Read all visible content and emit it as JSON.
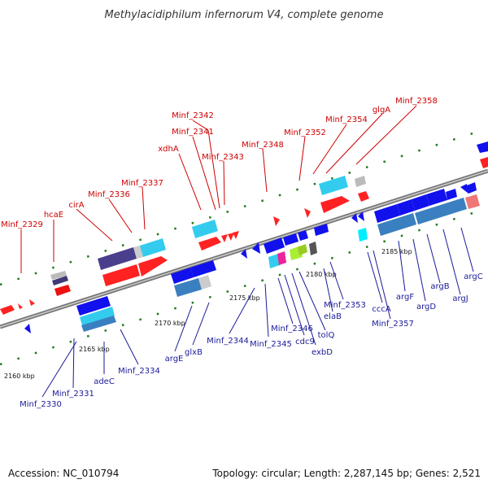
{
  "title": "Methylacidiphilum infernorum V4, complete genome",
  "footer": {
    "accession": "Accession: NC_010794",
    "topology": "Topology: circular; Length: 2,287,145 bp; Genes: 2,521"
  },
  "colors": {
    "forward_gene": "#ff0000",
    "reverse_gene": "#1010ee",
    "cds_blue": "#3a80c0",
    "cyan": "#33ccee",
    "purple": "#4a3f8c",
    "track_line": "#999999",
    "tick_green": "#1f7a1f",
    "label_top": "#cc0000",
    "label_bottom": "#1a1a99"
  },
  "scale_labels": [
    "2160 kbp",
    "2165 kbp",
    "2170 kbp",
    "2175 kbp",
    "2180 kbp",
    "2185 kbp"
  ],
  "top_labels": [
    "Minf_2329",
    "hcaE",
    "cirA",
    "Minf_2336",
    "Minf_2337",
    "xdhA",
    "Minf_2342",
    "Minf_2341",
    "Minf_2343",
    "Minf_2348",
    "Minf_2352",
    "Minf_2354",
    "glgA",
    "Minf_2358"
  ],
  "bottom_labels": [
    "Minf_2330",
    "Minf_2331",
    "adeC",
    "Minf_2334",
    "argE",
    "glxB",
    "Minf_2344",
    "Minf_2345",
    "Minf_2346",
    "cdc9",
    "exbD",
    "tolQ",
    "elaB",
    "Minf_2353",
    "cccA",
    "Minf_2357",
    "argF",
    "argD",
    "argB",
    "argJ",
    "argC"
  ]
}
